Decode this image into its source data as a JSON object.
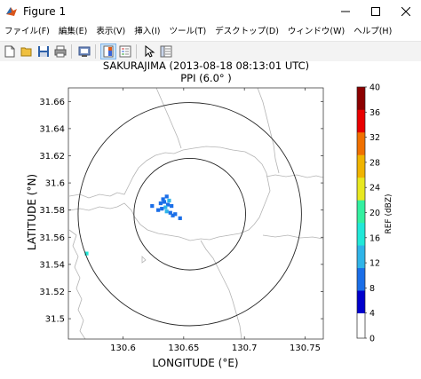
{
  "window": {
    "title": "Figure 1"
  },
  "menu": {
    "items": [
      "ファイル(F)",
      "編集(E)",
      "表示(V)",
      "挿入(I)",
      "ツール(T)",
      "デスクトップ(D)",
      "ウィンドウ(W)",
      "ヘルプ(H)"
    ]
  },
  "toolbar": {
    "buttons": [
      "new-icon",
      "open-icon",
      "save-icon",
      "print-icon",
      "print-preview-icon",
      "colorbar-icon",
      "legend-icon",
      "pointer-icon",
      "property-editor-icon"
    ]
  },
  "chart_data": {
    "type": "heatmap",
    "title": "SAKURAJIMA (2013-08-18 08:13:01 UTC)",
    "subtitle": "PPI (6.0°  )",
    "xlabel": "LONGITUDE (°E)",
    "ylabel": "LATITUDE (°N)",
    "xlim": [
      130.555,
      130.765
    ],
    "ylim": [
      31.485,
      31.67
    ],
    "xticks": [
      "130.6",
      "130.65",
      "130.7",
      "130.75"
    ],
    "xtick_values": [
      130.6,
      130.65,
      130.7,
      130.75
    ],
    "yticks": [
      "31.5",
      "31.52",
      "31.54",
      "31.56",
      "31.58",
      "31.6",
      "31.62",
      "31.64",
      "31.66"
    ],
    "ytick_values": [
      31.5,
      31.52,
      31.54,
      31.56,
      31.58,
      31.6,
      31.62,
      31.64,
      31.66
    ],
    "range_rings": [
      {
        "center": [
          130.655,
          31.577
        ],
        "radius_lon": 0.092
      },
      {
        "center": [
          130.655,
          31.577
        ],
        "radius_lon": 0.046
      }
    ],
    "colorbar": {
      "label": "REF (dBZ)",
      "ticks": [
        "0",
        "4",
        "8",
        "12",
        "16",
        "20",
        "24",
        "28",
        "32",
        "36",
        "40"
      ],
      "tick_values": [
        0,
        4,
        8,
        12,
        16,
        20,
        24,
        28,
        32,
        36,
        40
      ],
      "colors": [
        "#ffffff",
        "#0000cc",
        "#1a6ee8",
        "#2fb4e8",
        "#21e8d8",
        "#33f0a0",
        "#e8e820",
        "#f0b400",
        "#f07000",
        "#e80000",
        "#8c0000"
      ]
    },
    "echo_cells": [
      {
        "lon": 130.633,
        "lat": 31.588,
        "dbz": 6
      },
      {
        "lon": 130.636,
        "lat": 31.59,
        "dbz": 7
      },
      {
        "lon": 130.634,
        "lat": 31.586,
        "dbz": 5
      },
      {
        "lon": 130.638,
        "lat": 31.587,
        "dbz": 9
      },
      {
        "lon": 130.637,
        "lat": 31.584,
        "dbz": 6
      },
      {
        "lon": 130.64,
        "lat": 31.583,
        "dbz": 5
      },
      {
        "lon": 130.635,
        "lat": 31.582,
        "dbz": 8
      },
      {
        "lon": 130.632,
        "lat": 31.581,
        "dbz": 6
      },
      {
        "lon": 130.629,
        "lat": 31.58,
        "dbz": 5
      },
      {
        "lon": 130.636,
        "lat": 31.579,
        "dbz": 10
      },
      {
        "lon": 130.639,
        "lat": 31.578,
        "dbz": 6
      },
      {
        "lon": 130.641,
        "lat": 31.576,
        "dbz": 5
      },
      {
        "lon": 130.643,
        "lat": 31.577,
        "dbz": 6
      },
      {
        "lon": 130.624,
        "lat": 31.583,
        "dbz": 5
      },
      {
        "lon": 130.631,
        "lat": 31.585,
        "dbz": 7
      },
      {
        "lon": 130.647,
        "lat": 31.574,
        "dbz": 5
      },
      {
        "lon": 130.57,
        "lat": 31.548,
        "dbz": 14
      }
    ]
  }
}
